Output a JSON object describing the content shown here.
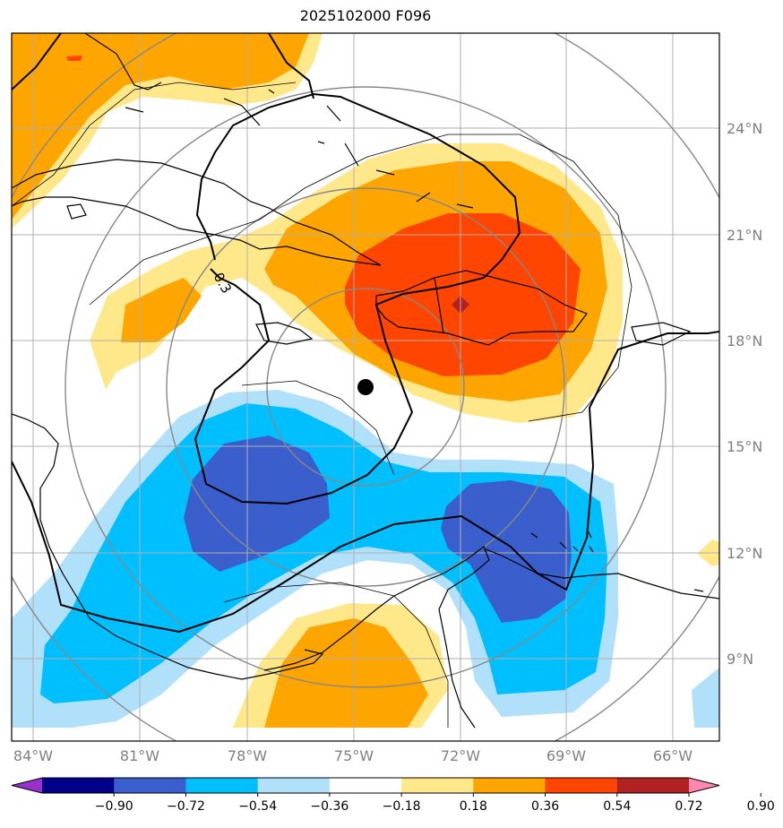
{
  "title": "2025102000 F096",
  "map": {
    "lon_labels": [
      "84°W",
      "81°W",
      "78°W",
      "75°W",
      "72°W",
      "69°W",
      "66°W"
    ],
    "lat_labels": [
      "24°N",
      "21°N",
      "18°N",
      "15°N",
      "12°N",
      "9°N"
    ],
    "contour_label": "0.3",
    "center_marker": "storm-center-dot"
  },
  "colorbar": {
    "ticks": [
      "−0.90",
      "−0.72",
      "−0.54",
      "−0.36",
      "−0.18",
      "0.18",
      "0.36",
      "0.54",
      "0.72",
      "0.90"
    ],
    "colors": [
      "#9932cc",
      "#00008b",
      "#3a5fcd",
      "#00bfff",
      "#b0e0fa",
      "#ffffff",
      "#ffe88a",
      "#ffa500",
      "#ff4500",
      "#b22222",
      "#ff88b0"
    ]
  }
}
